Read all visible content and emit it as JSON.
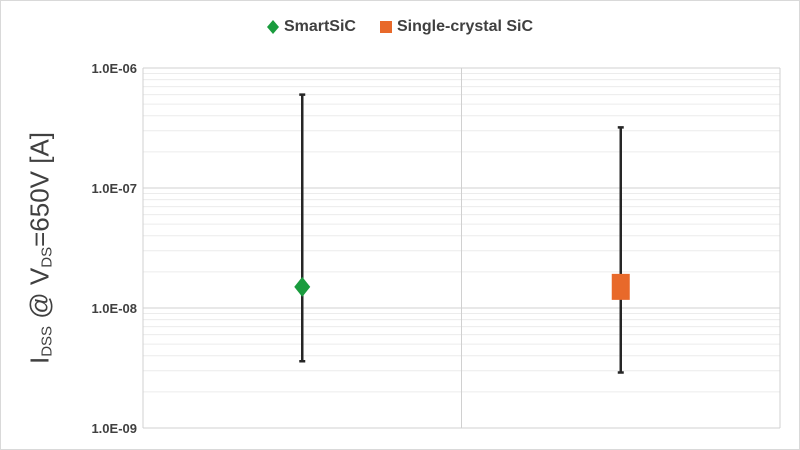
{
  "chart_data": {
    "type": "scatter",
    "title": "",
    "ylabel": {
      "main1": "I",
      "sub1": "DSS",
      "main2": " @ V",
      "sub2": "DS",
      "main3": "=650V [A]"
    },
    "xlabel": "",
    "yscale": "log",
    "ylim": [
      1e-09,
      1e-06
    ],
    "yticks": [
      "1.0E-09",
      "1.0E-08",
      "1.0E-07",
      "1.0E-06"
    ],
    "grid": true,
    "legend_position": "top",
    "series": [
      {
        "name": "SmartSiC",
        "marker": "diamond",
        "color": "#1a9c3e",
        "value": 1.5e-08,
        "error_low": 3.6e-09,
        "error_high": 6e-07
      },
      {
        "name": "Single-crystal SiC",
        "marker": "square",
        "color": "#e8692a",
        "value": 1.5e-08,
        "error_low": 2.9e-09,
        "error_high": 3.2e-07
      }
    ]
  }
}
